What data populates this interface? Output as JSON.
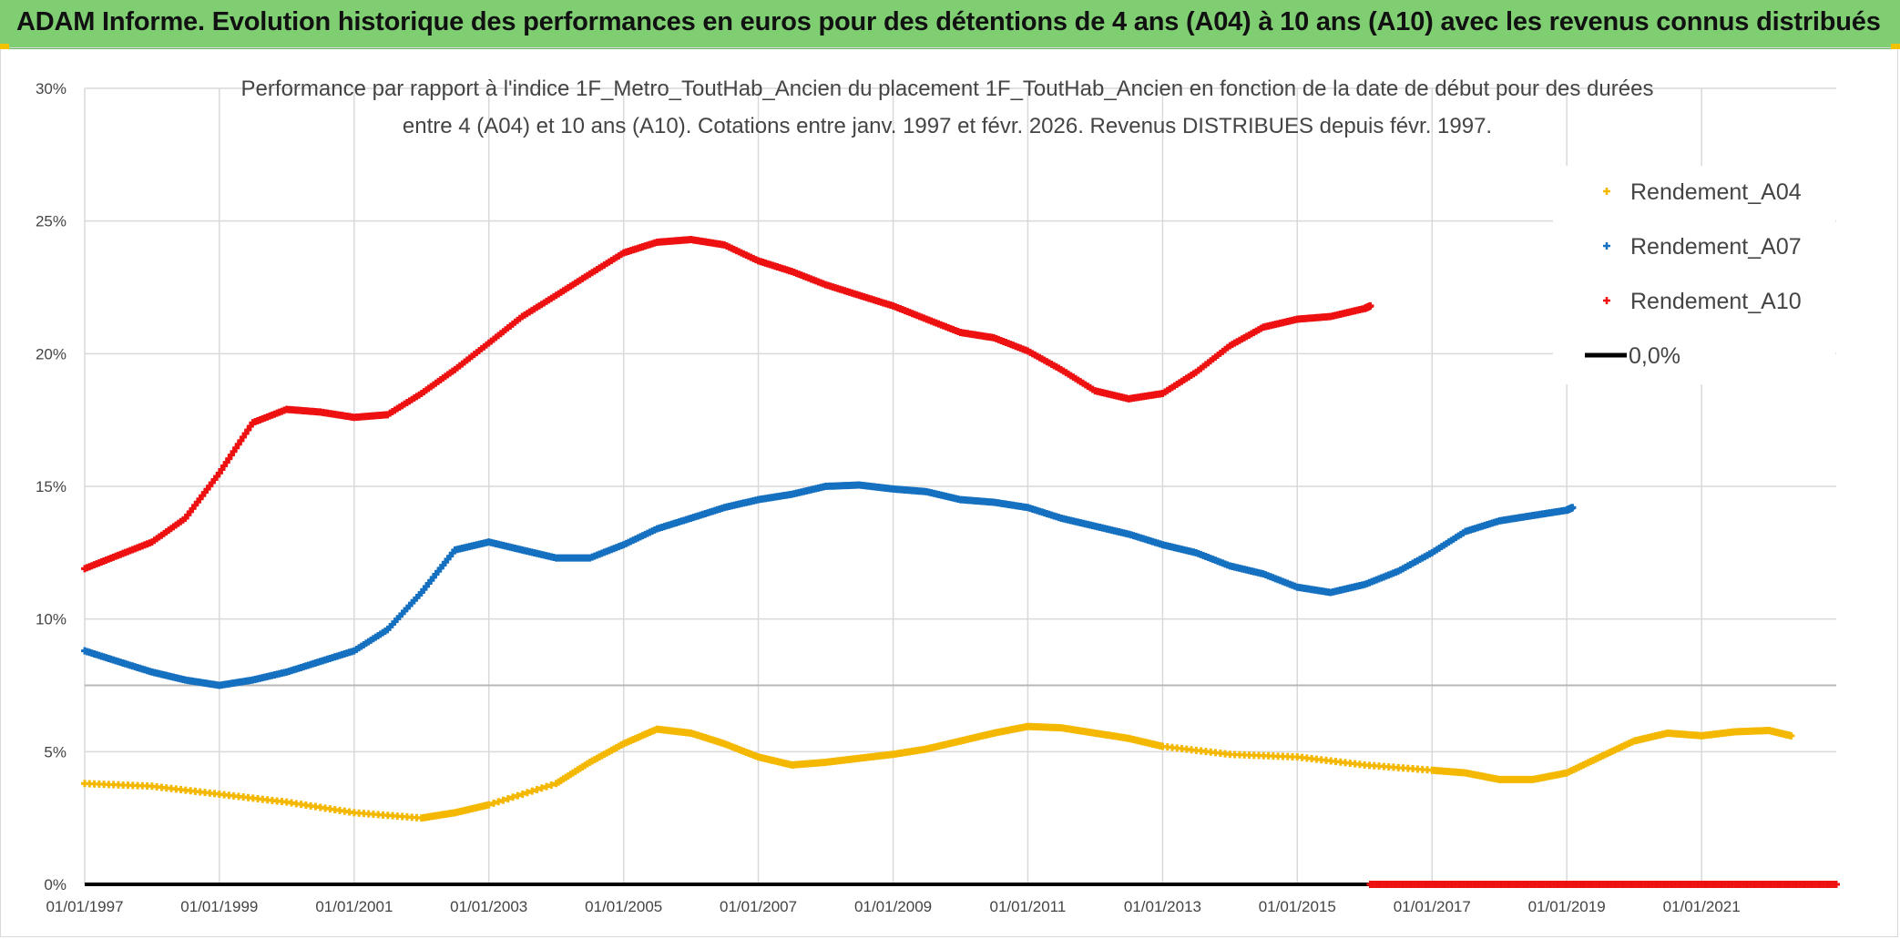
{
  "header": {
    "title": "ADAM Informe. Evolution historique des performances en euros pour des détentions de 4 ans (A04) à 10 ans (A10) avec les revenus connus distribués"
  },
  "colors": {
    "banner": "#7fcf72",
    "A04": "#f5b800",
    "A07": "#1570c0",
    "A10": "#ee1111",
    "zero": "#000000",
    "grid": "#d9d9d9"
  },
  "chart_data": {
    "type": "scatter",
    "title_lines": [
      "Performance par rapport à l'indice 1F_Metro_ToutHab_Ancien  du placement 1F_ToutHab_Ancien en fonction de la date de début pour des durées",
      "entre 4 (A04) et 10 ans (A10). Cotations entre janv. 1997 et févr. 2026. Revenus DISTRIBUES depuis févr. 1997."
    ],
    "x_range": [
      "1997-01-01",
      "2023-01-01"
    ],
    "x_ticks": [
      "01/01/1997",
      "01/01/1999",
      "01/01/2001",
      "01/01/2003",
      "01/01/2005",
      "01/01/2007",
      "01/01/2009",
      "01/01/2011",
      "01/01/2013",
      "01/01/2015",
      "01/01/2017",
      "01/01/2019",
      "01/01/2021"
    ],
    "x_tick_dates": [
      "1997-01-01",
      "1999-01-01",
      "2001-01-01",
      "2003-01-01",
      "2005-01-01",
      "2007-01-01",
      "2009-01-01",
      "2011-01-01",
      "2013-01-01",
      "2015-01-01",
      "2017-01-01",
      "2019-01-01",
      "2021-01-01"
    ],
    "y_range": [
      0,
      30
    ],
    "y_ticks": [
      "0%",
      "5%",
      "10%",
      "15%",
      "20%",
      "25%",
      "30%"
    ],
    "y_tick_values": [
      0,
      5,
      10,
      15,
      20,
      25,
      30
    ],
    "grid": true,
    "legend_position": "top-right",
    "series": [
      {
        "name": "Rendement_A04",
        "color": "#f5b800",
        "points": [
          [
            "1997-01-01",
            3.8
          ],
          [
            "1998-01-01",
            3.7
          ],
          [
            "1999-01-01",
            3.4
          ],
          [
            "2000-01-01",
            3.1
          ],
          [
            "2001-01-01",
            2.7
          ],
          [
            "2002-01-01",
            2.5
          ],
          [
            "2002-07-01",
            2.7
          ],
          [
            "2003-01-01",
            3.0
          ],
          [
            "2004-01-01",
            3.8
          ],
          [
            "2004-07-01",
            4.6
          ],
          [
            "2005-01-01",
            5.3
          ],
          [
            "2005-07-01",
            5.85
          ],
          [
            "2006-01-01",
            5.7
          ],
          [
            "2006-07-01",
            5.3
          ],
          [
            "2007-01-01",
            4.8
          ],
          [
            "2007-07-01",
            4.5
          ],
          [
            "2008-01-01",
            4.6
          ],
          [
            "2008-07-01",
            4.75
          ],
          [
            "2009-01-01",
            4.9
          ],
          [
            "2009-07-01",
            5.1
          ],
          [
            "2010-01-01",
            5.4
          ],
          [
            "2010-07-01",
            5.7
          ],
          [
            "2011-01-01",
            5.95
          ],
          [
            "2011-07-01",
            5.9
          ],
          [
            "2012-01-01",
            5.7
          ],
          [
            "2012-07-01",
            5.5
          ],
          [
            "2013-01-01",
            5.2
          ],
          [
            "2014-01-01",
            4.9
          ],
          [
            "2015-01-01",
            4.8
          ],
          [
            "2016-01-01",
            4.5
          ],
          [
            "2017-01-01",
            4.3
          ],
          [
            "2017-07-01",
            4.2
          ],
          [
            "2018-01-01",
            3.95
          ],
          [
            "2018-07-01",
            3.95
          ],
          [
            "2019-01-01",
            4.2
          ],
          [
            "2019-07-01",
            4.8
          ],
          [
            "2020-01-01",
            5.4
          ],
          [
            "2020-07-01",
            5.7
          ],
          [
            "2021-01-01",
            5.6
          ],
          [
            "2021-07-01",
            5.75
          ],
          [
            "2022-01-01",
            5.8
          ],
          [
            "2022-05-01",
            5.6
          ]
        ]
      },
      {
        "name": "Rendement_A07",
        "color": "#1570c0",
        "points": [
          [
            "1997-01-01",
            8.8
          ],
          [
            "1997-07-01",
            8.4
          ],
          [
            "1998-01-01",
            8.0
          ],
          [
            "1998-07-01",
            7.7
          ],
          [
            "1999-01-01",
            7.5
          ],
          [
            "1999-07-01",
            7.7
          ],
          [
            "2000-01-01",
            8.0
          ],
          [
            "2000-07-01",
            8.4
          ],
          [
            "2001-01-01",
            8.8
          ],
          [
            "2001-07-01",
            9.6
          ],
          [
            "2002-01-01",
            11.0
          ],
          [
            "2002-07-01",
            12.6
          ],
          [
            "2003-01-01",
            12.9
          ],
          [
            "2003-07-01",
            12.6
          ],
          [
            "2004-01-01",
            12.3
          ],
          [
            "2004-07-01",
            12.3
          ],
          [
            "2005-01-01",
            12.8
          ],
          [
            "2005-07-01",
            13.4
          ],
          [
            "2006-01-01",
            13.8
          ],
          [
            "2006-07-01",
            14.2
          ],
          [
            "2007-01-01",
            14.5
          ],
          [
            "2007-07-01",
            14.7
          ],
          [
            "2008-01-01",
            15.0
          ],
          [
            "2008-07-01",
            15.05
          ],
          [
            "2009-01-01",
            14.9
          ],
          [
            "2009-07-01",
            14.8
          ],
          [
            "2010-01-01",
            14.5
          ],
          [
            "2010-07-01",
            14.4
          ],
          [
            "2011-01-01",
            14.2
          ],
          [
            "2011-07-01",
            13.8
          ],
          [
            "2012-01-01",
            13.5
          ],
          [
            "2012-07-01",
            13.2
          ],
          [
            "2013-01-01",
            12.8
          ],
          [
            "2013-07-01",
            12.5
          ],
          [
            "2014-01-01",
            12.0
          ],
          [
            "2014-07-01",
            11.7
          ],
          [
            "2015-01-01",
            11.2
          ],
          [
            "2015-07-01",
            11.0
          ],
          [
            "2016-01-01",
            11.3
          ],
          [
            "2016-07-01",
            11.8
          ],
          [
            "2017-01-01",
            12.5
          ],
          [
            "2017-07-01",
            13.3
          ],
          [
            "2018-01-01",
            13.7
          ],
          [
            "2018-07-01",
            13.9
          ],
          [
            "2019-01-01",
            14.1
          ],
          [
            "2019-02-01",
            14.2
          ]
        ]
      },
      {
        "name": "Rendement_A10",
        "color": "#ee1111",
        "points": [
          [
            "1997-01-01",
            11.9
          ],
          [
            "1997-07-01",
            12.4
          ],
          [
            "1998-01-01",
            12.9
          ],
          [
            "1998-07-01",
            13.8
          ],
          [
            "1999-01-01",
            15.5
          ],
          [
            "1999-07-01",
            17.4
          ],
          [
            "2000-01-01",
            17.9
          ],
          [
            "2000-07-01",
            17.8
          ],
          [
            "2001-01-01",
            17.6
          ],
          [
            "2001-07-01",
            17.7
          ],
          [
            "2002-01-01",
            18.5
          ],
          [
            "2002-07-01",
            19.4
          ],
          [
            "2003-01-01",
            20.4
          ],
          [
            "2003-07-01",
            21.4
          ],
          [
            "2004-01-01",
            22.2
          ],
          [
            "2004-07-01",
            23.0
          ],
          [
            "2005-01-01",
            23.8
          ],
          [
            "2005-07-01",
            24.2
          ],
          [
            "2006-01-01",
            24.3
          ],
          [
            "2006-07-01",
            24.1
          ],
          [
            "2007-01-01",
            23.5
          ],
          [
            "2007-07-01",
            23.1
          ],
          [
            "2008-01-01",
            22.6
          ],
          [
            "2008-07-01",
            22.2
          ],
          [
            "2009-01-01",
            21.8
          ],
          [
            "2009-07-01",
            21.3
          ],
          [
            "2010-01-01",
            20.8
          ],
          [
            "2010-07-01",
            20.6
          ],
          [
            "2011-01-01",
            20.1
          ],
          [
            "2011-07-01",
            19.4
          ],
          [
            "2012-01-01",
            18.6
          ],
          [
            "2012-07-01",
            18.3
          ],
          [
            "2013-01-01",
            18.5
          ],
          [
            "2013-07-01",
            19.3
          ],
          [
            "2014-01-01",
            20.3
          ],
          [
            "2014-07-01",
            21.0
          ],
          [
            "2015-01-01",
            21.3
          ],
          [
            "2015-07-01",
            21.4
          ],
          [
            "2016-01-01",
            21.7
          ],
          [
            "2016-02-01",
            21.8
          ]
        ]
      },
      {
        "name": "0,0%",
        "color": "#000000",
        "points": [
          [
            "1997-01-01",
            0
          ],
          [
            "2016-02-01",
            0
          ]
        ]
      }
    ],
    "a10_zero_segment": {
      "color": "#ee1111",
      "points": [
        [
          "2016-02-01",
          0
        ],
        [
          "2023-01-01",
          0
        ]
      ]
    }
  }
}
